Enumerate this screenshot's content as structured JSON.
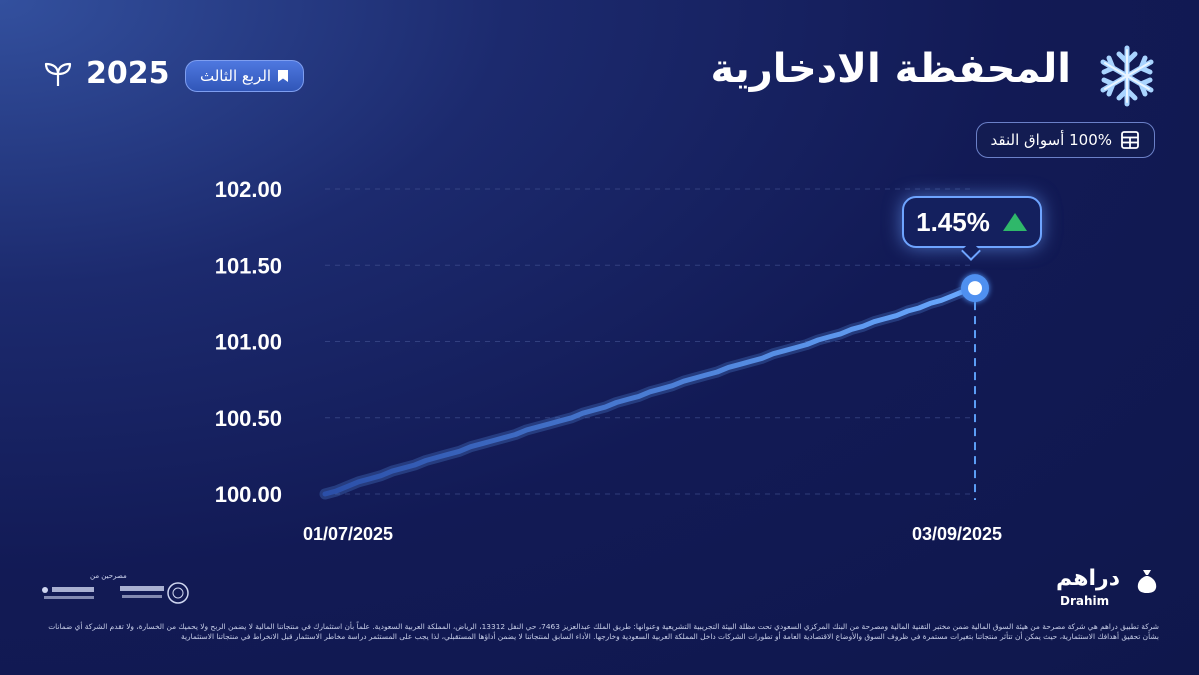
{
  "header": {
    "title": "المحفظة الادخارية",
    "year": "2025",
    "quarter_label": "الربع الثالث",
    "asset_allocation": "100% أسواق النقد"
  },
  "callout": {
    "return_label": "1.45%"
  },
  "chart_data": {
    "type": "line",
    "title": "",
    "xlabel": "",
    "ylabel": "",
    "ylim": [
      100.0,
      102.0
    ],
    "yticks": [
      "102.00",
      "101.50",
      "101.00",
      "100.50",
      "100.00"
    ],
    "ytick_values": [
      102.0,
      101.5,
      101.0,
      100.5,
      100.0
    ],
    "xticks": [
      "01/07/2025",
      "03/09/2025"
    ],
    "grid": "horizontal dashed",
    "series": [
      {
        "values": [
          100.0,
          100.02,
          100.05,
          100.08,
          100.1,
          100.12,
          100.15,
          100.17,
          100.19,
          100.22,
          100.24,
          100.26,
          100.28,
          100.31,
          100.33,
          100.35,
          100.37,
          100.39,
          100.42,
          100.44,
          100.46,
          100.48,
          100.5,
          100.53,
          100.55,
          100.57,
          100.6,
          100.62,
          100.64,
          100.67,
          100.69,
          100.71,
          100.74,
          100.76,
          100.78,
          100.8,
          100.83,
          100.85,
          100.87,
          100.89,
          100.92,
          100.94,
          100.96,
          100.98,
          101.01,
          101.03,
          101.05,
          101.08,
          101.1,
          101.13,
          101.15,
          101.17,
          101.2,
          101.22,
          101.25,
          101.27,
          101.3,
          101.33,
          101.35
        ]
      }
    ],
    "end_value": 101.35,
    "colors": {
      "line": "#5b9df5",
      "marker": "#4f90f0",
      "growth_up": "#2fb86a"
    }
  },
  "brand": {
    "name": "دراهم",
    "latin": "Drahim"
  },
  "regulators": {
    "label": "مصرحين من"
  },
  "disclaimer": "شركة تطبيق دراهم هي شركة مصرحة من هيئة السوق المالية ضمن مختبر التقنية المالية ومصرحة من البنك المركزي السعودي تحت مظلة البيئة التجريبية التشريعية وعنوانها: طريق الملك عبدالعزيز 7463، حي النفل 13312، الرياض، المملكة العربية السعودية. علماً بأن استثمارك في منتجاتنا المالية لا يضمن الربح ولا يحميك من الخسارة، ولا تقدم الشركة أي ضمانات بشأن تحقيق أهدافك الاستثمارية، حيث يمكن أن تتأثر منتجاتنا بتغيرات مستمرة في ظروف السوق والأوضاع الاقتصادية العامة أو تطورات الشركات داخل المملكة العربية السعودية وخارجها. الأداء السابق لمنتجاتنا لا يضمن أداؤها المستقبلي، لذا يجب على المستثمر دراسة مخاطر الاستثمار قبل الانخراط في منتجاتنا الاستثمارية"
}
